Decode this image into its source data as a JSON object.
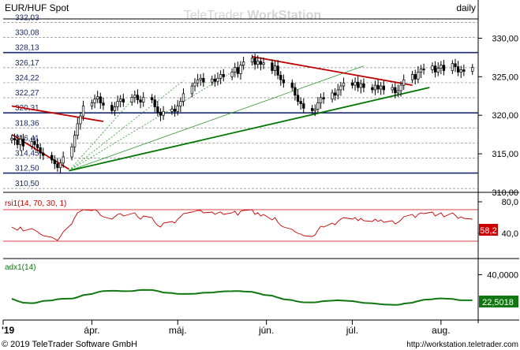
{
  "header": {
    "symbol": "EUR/HUF Spot",
    "period": "daily",
    "watermark_light": "TeleTrader ",
    "watermark_bold": "WorkStation"
  },
  "footer": {
    "copyright": "© 2019 TeleTrader Software GmbH",
    "url": "http://workstation.teletrader.com"
  },
  "colors": {
    "background": "#ffffff",
    "frame": "#000000",
    "candle": "#000000",
    "resistance_line": "#c00000",
    "support_line": "#007700",
    "fan_line": "#339933",
    "rsi_line": "#cc0000",
    "adx_line": "#117711",
    "rsi_value_bg": "#cc0000",
    "adx_value_bg": "#117711",
    "grid_dash": "#888888"
  },
  "chart_data": [
    {
      "type": "candlestick",
      "title": "EUR/HUF Spot",
      "x_tick_labels": [
        "'19",
        "ápr.",
        "máj.",
        "jún.",
        "júl.",
        "aug."
      ],
      "ylim": [
        310.0,
        332.5
      ],
      "y_tick_labels": [
        "310,00",
        "315,00",
        "320,00",
        "325,00",
        "330,00"
      ],
      "price_levels": [
        "332,03",
        "330,08",
        "328,13",
        "326,17",
        "324,22",
        "322,27",
        "320,31",
        "318,36",
        "316,41",
        "314,45",
        "312,50",
        "310,50"
      ],
      "price_level_values": [
        332.03,
        330.08,
        328.13,
        326.17,
        324.22,
        322.27,
        320.31,
        318.36,
        316.41,
        314.45,
        312.5,
        310.5
      ],
      "emphasized_levels": [
        328.13,
        320.31,
        312.5
      ],
      "start_date": "2019-03-04",
      "closes": [
        317.0,
        316.8,
        316.2,
        316.9,
        316.0,
        316.6,
        316.2,
        315.8,
        315.1,
        314.8,
        314.2,
        313.7,
        313.2,
        313.8,
        314.6,
        315.9,
        317.4,
        318.9,
        319.9,
        321.2,
        321.6,
        322.1,
        322.4,
        321.6,
        321.3,
        320.6,
        321.1,
        321.8,
        322.1,
        321.7,
        322.3,
        322.6,
        322.0,
        321.7,
        322.3,
        322.0,
        321.1,
        320.4,
        320.0,
        320.5,
        320.8,
        320.5,
        321.2,
        321.8,
        322.8,
        323.8,
        324.2,
        324.6,
        324.8,
        324.3,
        324.7,
        324.4,
        324.8,
        325.3,
        325.0,
        325.6,
        326.2,
        325.4,
        326.5,
        326.9,
        327.4,
        326.6,
        327.0,
        326.6,
        326.8,
        325.8,
        326.4,
        325.2,
        324.6,
        324.2,
        323.6,
        322.6,
        321.8,
        321.5,
        320.9,
        320.6,
        320.8,
        321.6,
        322.3,
        322.1,
        322.9,
        322.6,
        323.3,
        323.8,
        324.2,
        323.9,
        324.3,
        323.6,
        324.1,
        323.6,
        323.3,
        323.9,
        323.4,
        323.8,
        323.3,
        323.6,
        322.9,
        323.2,
        323.9,
        324.6,
        325.3,
        324.7,
        325.6,
        326.0,
        325.9,
        326.4,
        325.6,
        326.1,
        326.5,
        325.8,
        326.7,
        326.3,
        325.6,
        325.9,
        325.7,
        326.2
      ],
      "trendlines": [
        {
          "from": [
            "2019-03-04",
            321.2
          ],
          "to": [
            "2019-04-05",
            319.2
          ],
          "color": "resistance"
        },
        {
          "from": [
            "2019-03-04",
            317.5
          ],
          "to": [
            "2019-03-24",
            313.0
          ],
          "color": "resistance"
        },
        {
          "from": [
            "2019-05-27",
            327.6
          ],
          "to": [
            "2019-07-22",
            323.9
          ],
          "color": "resistance"
        },
        {
          "from": [
            "2019-03-24",
            312.8
          ],
          "to": [
            "2019-07-28",
            323.6
          ],
          "color": "support"
        }
      ],
      "fan_lines": [
        {
          "from": [
            "2019-03-24",
            312.8
          ],
          "to": [
            "2019-04-17",
            322.8
          ]
        },
        {
          "from": [
            "2019-03-24",
            312.8
          ],
          "to": [
            "2019-05-03",
            324.5
          ]
        },
        {
          "from": [
            "2019-03-24",
            312.8
          ],
          "to": [
            "2019-05-24",
            326.5
          ]
        },
        {
          "from": [
            "2019-03-24",
            312.8
          ],
          "to": [
            "2019-07-05",
            326.4
          ]
        }
      ]
    },
    {
      "type": "line",
      "title": "rsi1(14, 70, 30, 1)",
      "ylim": [
        10,
        90
      ],
      "y_tick_labels": [
        "40,0",
        "80,0"
      ],
      "y_tick_values": [
        40,
        80
      ],
      "levels": [
        70,
        30
      ],
      "current_value": "58,2",
      "values": [
        48,
        46,
        44,
        48,
        43,
        46,
        44,
        42,
        39,
        37,
        35,
        33,
        31,
        36,
        42,
        52,
        60,
        66,
        68,
        70,
        69,
        70,
        68,
        63,
        61,
        58,
        61,
        64,
        65,
        62,
        65,
        66,
        61,
        58,
        62,
        60,
        54,
        50,
        48,
        53,
        55,
        53,
        58,
        61,
        65,
        67,
        68,
        69,
        69,
        66,
        67,
        64,
        66,
        67,
        64,
        66,
        68,
        63,
        68,
        69,
        70,
        64,
        66,
        62,
        64,
        57,
        60,
        54,
        50,
        48,
        45,
        42,
        40,
        39,
        37,
        36,
        38,
        44,
        49,
        48,
        53,
        51,
        55,
        58,
        60,
        58,
        60,
        56,
        59,
        56,
        55,
        58,
        55,
        57,
        54,
        56,
        52,
        54,
        57,
        61,
        64,
        60,
        64,
        66,
        65,
        67,
        62,
        64,
        66,
        61,
        66,
        63,
        59,
        61,
        59,
        58
      ]
    },
    {
      "type": "line",
      "title": "adx1(14)",
      "ylim": [
        10,
        50
      ],
      "y_tick_labels": [
        "40,0000"
      ],
      "y_tick_values": [
        40
      ],
      "current_value": "22,5018",
      "values": [
        23.5,
        22.8,
        22.0,
        21.4,
        20.8,
        20.5,
        20.6,
        21.0,
        21.5,
        22.0,
        22.4,
        22.8,
        23.2,
        23.4,
        23.5,
        23.6,
        24.0,
        24.6,
        25.3,
        26.0,
        26.8,
        27.4,
        28.0,
        28.5,
        28.8,
        29.0,
        29.0,
        28.9,
        28.8,
        28.7,
        28.8,
        29.0,
        29.3,
        29.5,
        29.6,
        29.5,
        29.2,
        28.8,
        28.3,
        27.8,
        27.4,
        27.1,
        26.9,
        26.8,
        26.8,
        26.9,
        27.0,
        27.2,
        27.4,
        27.6,
        27.8,
        28.0,
        28.2,
        28.4,
        28.6,
        28.7,
        28.8,
        28.8,
        28.7,
        28.5,
        28.2,
        27.8,
        27.3,
        26.8,
        26.2,
        25.6,
        25.0,
        24.4,
        23.8,
        23.2,
        22.6,
        22.0,
        21.6,
        21.3,
        21.1,
        21.0,
        21.1,
        21.3,
        21.6,
        21.9,
        22.2,
        22.4,
        22.5,
        22.4,
        22.2,
        21.9,
        21.6,
        21.3,
        21.0,
        20.7,
        20.4,
        20.2,
        20.0,
        19.8,
        19.6,
        19.4,
        19.3,
        19.4,
        19.7,
        20.2,
        20.8,
        21.4,
        21.9,
        22.4,
        22.8,
        23.2,
        23.5,
        23.7,
        23.8,
        23.7,
        23.4,
        23.0,
        22.7,
        22.5,
        22.5,
        22.5
      ]
    }
  ]
}
